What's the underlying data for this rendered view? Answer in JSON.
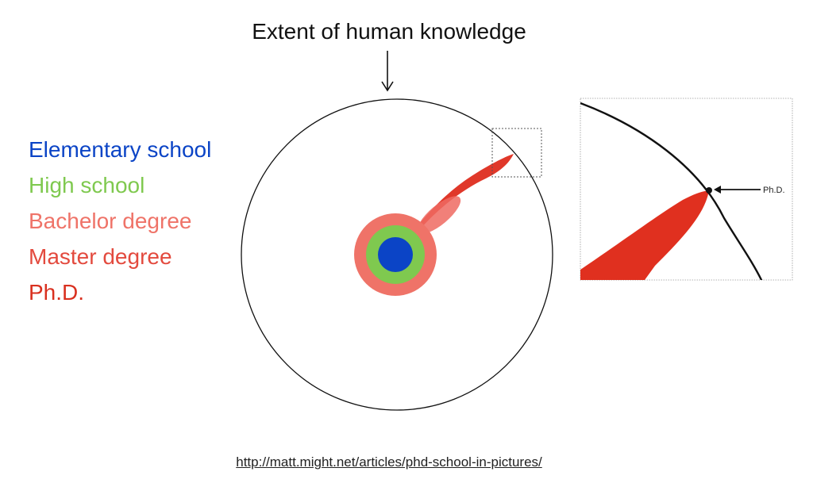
{
  "title": "Extent of human knowledge",
  "legend": [
    {
      "label": "Elementary school",
      "color": "#0b44c6"
    },
    {
      "label": "High school",
      "color": "#7fc94f"
    },
    {
      "label": "Bachelor degree",
      "color": "#ef7368"
    },
    {
      "label": "Master degree",
      "color": "#e34a3e"
    },
    {
      "label": "Ph.D.",
      "color": "#d9301f"
    }
  ],
  "zoom_label": "Ph.D.",
  "source_url": "http://matt.might.net/articles/phd-school-in-pictures/"
}
